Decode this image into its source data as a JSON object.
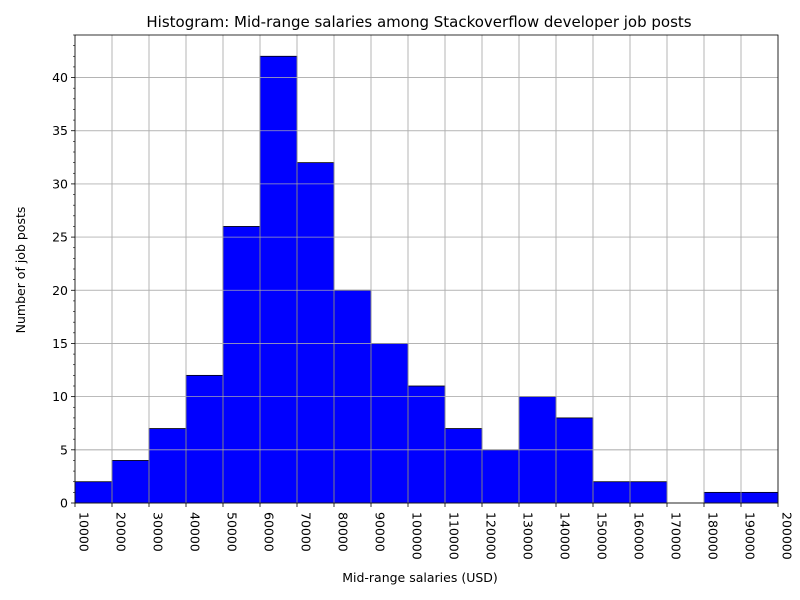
{
  "chart_data": {
    "type": "bar",
    "title": "Histogram: Mid-range salaries among Stackoverflow developer job posts",
    "xlabel": "Mid-range salaries (USD)",
    "ylabel": "Number of job posts",
    "bin_edges": [
      10000,
      20000,
      30000,
      40000,
      50000,
      60000,
      70000,
      80000,
      90000,
      100000,
      110000,
      120000,
      130000,
      140000,
      150000,
      160000,
      170000,
      180000,
      190000,
      200000
    ],
    "values": [
      2,
      4,
      7,
      12,
      26,
      42,
      32,
      20,
      15,
      11,
      7,
      5,
      10,
      8,
      2,
      2,
      0,
      1,
      1
    ],
    "xlim": [
      10000,
      200000
    ],
    "ylim": [
      0,
      44
    ],
    "y_ticks": [
      0,
      5,
      10,
      15,
      20,
      25,
      30,
      35,
      40
    ],
    "x_ticks": [
      10000,
      20000,
      30000,
      40000,
      50000,
      60000,
      70000,
      80000,
      90000,
      100000,
      110000,
      120000,
      130000,
      140000,
      150000,
      160000,
      170000,
      180000,
      190000,
      200000
    ],
    "x_tick_rotation": "rotated 90 degrees clockwise",
    "y_minor_ticks": true,
    "grid": true,
    "legend": "none",
    "colors": {
      "bar_fill": "#0000ff",
      "bar_edge": "#000000",
      "grid": "#b0b0b0"
    }
  }
}
